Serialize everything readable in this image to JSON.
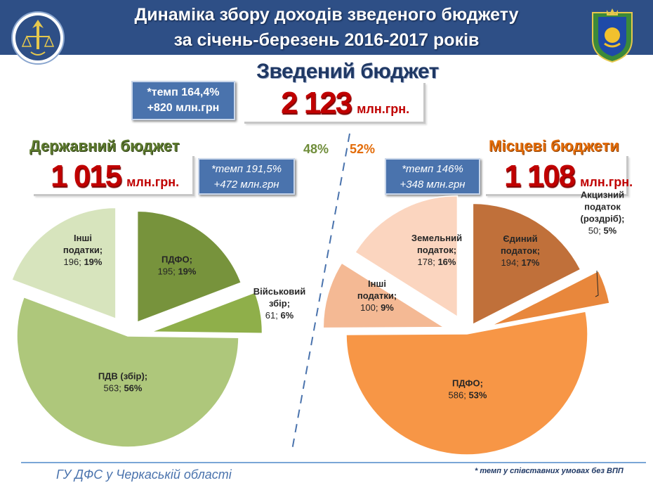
{
  "header": {
    "title_line1": "Динаміка збору доходів зведеного бюджету",
    "title_line2": "за січень-березень 2016-2017 років"
  },
  "consolidated": {
    "title": "Зведений бюджет",
    "rate_line1": "*темп 164,4%",
    "rate_line2": "+820 млн.грн",
    "amount": "2 123",
    "unit": "млн.грн."
  },
  "state_budget": {
    "title": "Державний бюджет",
    "amount": "1 015",
    "unit": "млн.грн.",
    "rate_line1": "*темп 191,5%",
    "rate_line2": "+472 млн.грн",
    "share": "48%"
  },
  "local_budget": {
    "title": "Місцеві бюджети",
    "amount": "1 108",
    "unit": "млн.грн.",
    "rate_line1": "*темп 146%",
    "rate_line2": "+348 млн.грн",
    "share": "52%"
  },
  "footer": {
    "left": "ГУ ДФС у Черкаській області",
    "right": "* темп у співставних умовах без ВПП"
  },
  "chart_data": [
    {
      "type": "pie",
      "title": "",
      "slices": [
        {
          "label_lines": [
            "ПДФО;"
          ],
          "value": 195,
          "value_text": "195;",
          "percent_text": "19%",
          "color": "#77933c"
        },
        {
          "label_lines": [
            "Військовий",
            "збір;"
          ],
          "value": 61,
          "value_text": "61;",
          "percent_text": "6%",
          "color": "#8faf4a"
        },
        {
          "label_lines": [
            "ПДВ (збір);"
          ],
          "value": 563,
          "value_text": "563;",
          "percent_text": "56%",
          "color": "#aec77b"
        },
        {
          "label_lines": [
            "Інші",
            "податки;"
          ],
          "value": 196,
          "value_text": "196;",
          "percent_text": "19%",
          "color": "#d7e4bd"
        }
      ]
    },
    {
      "type": "pie",
      "title": "",
      "slices": [
        {
          "label_lines": [
            "Єдиний",
            "податок;"
          ],
          "value": 194,
          "value_text": "194;",
          "percent_text": "17%",
          "color": "#c0703a"
        },
        {
          "label_lines": [
            "Акцизний",
            "податок",
            "(роздріб);"
          ],
          "value": 50,
          "value_text": "50;",
          "percent_text": "5%",
          "color": "#e8873c"
        },
        {
          "label_lines": [
            "ПДФО;"
          ],
          "value": 586,
          "value_text": "586;",
          "percent_text": "53%",
          "color": "#f79646"
        },
        {
          "label_lines": [
            "Інші",
            "податки;"
          ],
          "value": 100,
          "value_text": "100;",
          "percent_text": "9%",
          "color": "#f4b994"
        },
        {
          "label_lines": [
            "Земельний",
            "податок;"
          ],
          "value": 178,
          "value_text": "178;",
          "percent_text": "16%",
          "color": "#fbd5bf"
        }
      ]
    }
  ]
}
